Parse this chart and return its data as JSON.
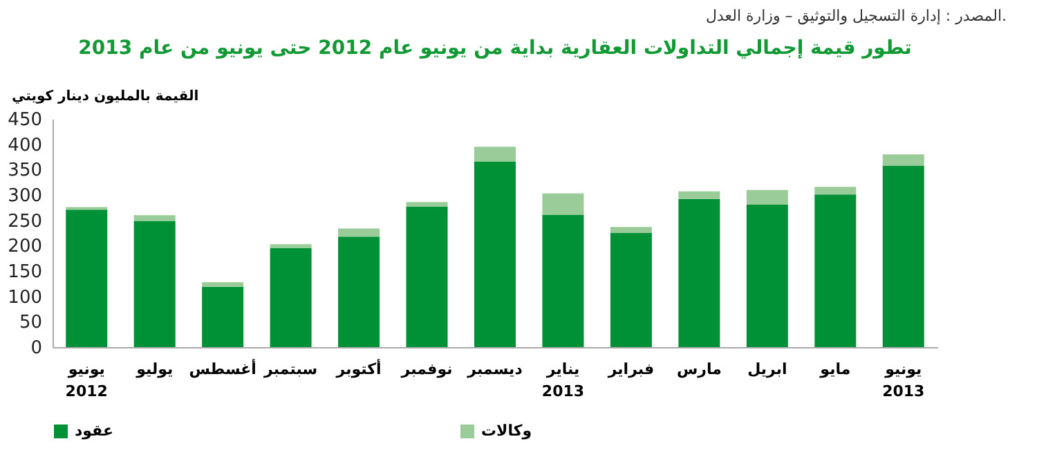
{
  "chart_data": {
    "type": "bar",
    "stacked": true,
    "title": "تطور قيمة إجمالي التداولات العقارية بداية من يونيو عام 2012 حتى يونيو من عام 2013",
    "ylabel": "القيمة بالمليون دينار كويتي",
    "annotations": [
      "المصدر : إدارة التسجيل والتوثيق – وزارة العدل."
    ],
    "categories": [
      "يونيو\n2012",
      "يوليو",
      "أغسطس",
      "سبتمبر",
      "أكتوبر",
      "نوفمبر",
      "ديسمبر",
      "يناير\n2013",
      "فبراير",
      "مارس",
      "ابريل",
      "مايو",
      "يونيو\n2013"
    ],
    "series": [
      {
        "name": "عقود",
        "color": "#009035",
        "values": [
          271,
          249,
          119,
          195,
          218,
          277,
          366,
          261,
          225,
          292,
          281,
          301,
          358
        ]
      },
      {
        "name": "وكالات",
        "color": "#99cc99",
        "values": [
          5,
          11,
          9,
          8,
          16,
          9,
          29,
          42,
          12,
          15,
          29,
          15,
          22
        ]
      }
    ],
    "ylim": [
      0,
      450
    ],
    "yticks": [
      0,
      50,
      100,
      150,
      200,
      250,
      300,
      350,
      400,
      450
    ],
    "grid": false,
    "legend": "bottom"
  }
}
